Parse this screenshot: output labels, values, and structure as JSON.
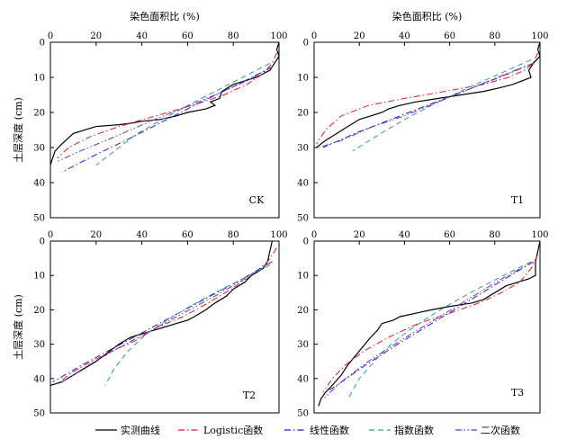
{
  "chart_data": [
    {
      "type": "line",
      "label": "CK",
      "xlabel": "染色面积比 (%)",
      "ylabel": "土层深度 (cm)",
      "xlim": [
        0,
        100
      ],
      "ylim": [
        50,
        0
      ],
      "xticks": [
        0,
        20,
        40,
        60,
        80,
        100
      ],
      "yticks": [
        0,
        10,
        20,
        30,
        40,
        50
      ],
      "series": [
        {
          "name": "实测曲线",
          "x": [
            100,
            99,
            100,
            98,
            96,
            93,
            90,
            85,
            80,
            75,
            74,
            70,
            72,
            68,
            60,
            55,
            48,
            40,
            36,
            30,
            20,
            10,
            5,
            2,
            1,
            0
          ],
          "y": [
            0,
            2,
            4,
            6,
            8,
            9,
            10,
            11,
            12,
            14,
            16,
            17,
            18,
            19,
            20,
            21,
            22,
            22.5,
            23,
            23.5,
            24,
            26,
            29,
            31,
            33,
            35
          ]
        },
        {
          "name": "Logistic函数",
          "x": [
            99,
            97,
            93,
            86,
            76,
            62,
            46,
            30,
            17,
            8,
            3
          ],
          "y": [
            3,
            6,
            9,
            12,
            15,
            18,
            21,
            24,
            27,
            30,
            33
          ]
        },
        {
          "name": "线性函数",
          "x": [
            97,
            82,
            66,
            51,
            36,
            20,
            5
          ],
          "y": [
            7,
            12,
            17,
            22,
            27,
            32,
            37
          ]
        },
        {
          "name": "指数函数",
          "x": [
            96,
            84,
            72,
            60,
            49,
            38,
            28,
            20
          ],
          "y": [
            6,
            10,
            14,
            18,
            22,
            26,
            31,
            35
          ]
        },
        {
          "name": "二次函数",
          "x": [
            97,
            86,
            72,
            57,
            42,
            28,
            13,
            3
          ],
          "y": [
            7,
            11,
            15,
            19,
            23,
            27,
            31,
            34
          ]
        }
      ]
    },
    {
      "type": "line",
      "label": "T1",
      "xlabel": "染色面积比 (%)",
      "ylabel": "",
      "xlim": [
        0,
        100
      ],
      "ylim": [
        50,
        0
      ],
      "xticks": [
        0,
        20,
        40,
        60,
        80,
        100
      ],
      "yticks": [
        0,
        10,
        20,
        30,
        40,
        50
      ],
      "series": [
        {
          "name": "实测曲线",
          "x": [
            100,
            99,
            100,
            97,
            95,
            96,
            92,
            88,
            82,
            75,
            65,
            55,
            45,
            38,
            33,
            30,
            25,
            20,
            15,
            10,
            5,
            1
          ],
          "y": [
            0,
            2,
            4,
            6,
            8,
            10,
            11,
            12,
            13,
            14,
            15,
            16,
            17,
            18,
            19,
            20,
            21,
            22,
            24,
            26,
            28,
            30
          ]
        },
        {
          "name": "Logistic函数",
          "x": [
            99,
            97,
            93,
            86,
            75,
            58,
            40,
            24,
            12,
            5,
            1
          ],
          "y": [
            3,
            6,
            8,
            10,
            12,
            14,
            16,
            18,
            21,
            25,
            29
          ]
        },
        {
          "name": "线性函数",
          "x": [
            97,
            82,
            66,
            50,
            34,
            18,
            4
          ],
          "y": [
            6,
            10,
            14,
            18,
            22,
            26,
            30
          ]
        },
        {
          "name": "指数函数",
          "x": [
            96,
            82,
            68,
            55,
            43,
            32,
            22,
            17
          ],
          "y": [
            5,
            9,
            13,
            17,
            21,
            25,
            29,
            31
          ]
        },
        {
          "name": "二次函数",
          "x": [
            97,
            85,
            70,
            55,
            40,
            26,
            12,
            2
          ],
          "y": [
            6,
            9,
            13,
            17,
            21,
            24,
            28,
            30
          ]
        }
      ]
    },
    {
      "type": "line",
      "label": "T2",
      "xlabel": "",
      "ylabel": "土层深度 (cm)",
      "xlim": [
        0,
        100
      ],
      "ylim": [
        50,
        0
      ],
      "xticks": [
        0,
        20,
        40,
        60,
        80,
        100
      ],
      "yticks": [
        0,
        10,
        20,
        30,
        40,
        50
      ],
      "series": [
        {
          "name": "实测曲线",
          "x": [
            97,
            96,
            95,
            93,
            88,
            85,
            80,
            77,
            72,
            68,
            63,
            60,
            55,
            50,
            45,
            40,
            35,
            30,
            28,
            24,
            20,
            15,
            10,
            5,
            0
          ],
          "y": [
            0,
            3,
            6,
            8,
            10,
            12,
            14,
            16,
            18,
            20,
            22,
            23,
            24,
            25,
            26,
            27,
            28,
            30,
            31,
            33,
            35,
            37,
            39,
            41,
            42
          ]
        },
        {
          "name": "Logistic函数",
          "x": [
            99,
            95,
            88,
            79,
            69,
            58,
            47,
            37,
            27,
            18,
            10,
            4
          ],
          "y": [
            2,
            6,
            10,
            14,
            18,
            22,
            25,
            29,
            32,
            35,
            38,
            41
          ]
        },
        {
          "name": "线性函数",
          "x": [
            97,
            84,
            70,
            56,
            42,
            28,
            14,
            1
          ],
          "y": [
            6,
            11,
            16,
            21,
            26,
            31,
            36,
            41
          ]
        },
        {
          "name": "指数函数",
          "x": [
            96,
            84,
            72,
            61,
            51,
            42,
            34,
            28,
            24
          ],
          "y": [
            7,
            11,
            15,
            19,
            23,
            27,
            32,
            37,
            42
          ]
        },
        {
          "name": "二次函数",
          "x": [
            97,
            85,
            72,
            58,
            44,
            30,
            17,
            5
          ],
          "y": [
            6,
            11,
            16,
            21,
            26,
            31,
            36,
            41
          ]
        }
      ]
    },
    {
      "type": "line",
      "label": "T3",
      "xlabel": "",
      "ylabel": "",
      "xlim": [
        0,
        100
      ],
      "ylim": [
        50,
        0
      ],
      "xticks": [
        0,
        20,
        40,
        60,
        80,
        100
      ],
      "yticks": [
        0,
        10,
        20,
        30,
        40,
        50
      ],
      "series": [
        {
          "name": "实测曲线",
          "x": [
            100,
            99,
            98,
            98,
            95,
            90,
            85,
            80,
            75,
            70,
            60,
            52,
            45,
            38,
            35,
            30,
            28,
            25,
            20,
            15,
            12,
            8,
            5,
            3,
            2
          ],
          "y": [
            0,
            3,
            6,
            10,
            11,
            12,
            13,
            15,
            17,
            18,
            19,
            20,
            21,
            22,
            23,
            24,
            26,
            28,
            32,
            36,
            39,
            42,
            44,
            46,
            48
          ]
        },
        {
          "name": "Logistic函数",
          "x": [
            99,
            96,
            91,
            83,
            73,
            60,
            46,
            33,
            22,
            14,
            8,
            4
          ],
          "y": [
            4,
            8,
            12,
            15,
            18,
            21,
            24,
            28,
            32,
            36,
            40,
            44
          ]
        },
        {
          "name": "线性函数",
          "x": [
            97,
            82,
            67,
            52,
            37,
            23,
            10,
            5
          ],
          "y": [
            6,
            12,
            18,
            24,
            30,
            36,
            42,
            44
          ]
        },
        {
          "name": "指数函数",
          "x": [
            96,
            84,
            72,
            61,
            51,
            42,
            34,
            28,
            20,
            15
          ],
          "y": [
            6,
            10,
            14,
            18,
            22,
            26,
            30,
            34,
            40,
            46
          ]
        },
        {
          "name": "二次函数",
          "x": [
            97,
            83,
            68,
            53,
            38,
            24,
            12,
            4
          ],
          "y": [
            6,
            11,
            17,
            23,
            29,
            35,
            41,
            46
          ]
        }
      ]
    }
  ],
  "legend": {
    "items": [
      {
        "label": "实测曲线",
        "color": "#000000",
        "dash": "solid"
      },
      {
        "label": "Logistic函数",
        "color": "#e31a1c",
        "dash": "dashdot"
      },
      {
        "label": "线性函数",
        "color": "#1f1fd0",
        "dash": "dashdot"
      },
      {
        "label": "指数函数",
        "color": "#33a08a",
        "dash": "dash"
      },
      {
        "label": "二次函数",
        "color": "#7a2fc0",
        "dash": "dashdotdot"
      }
    ]
  }
}
